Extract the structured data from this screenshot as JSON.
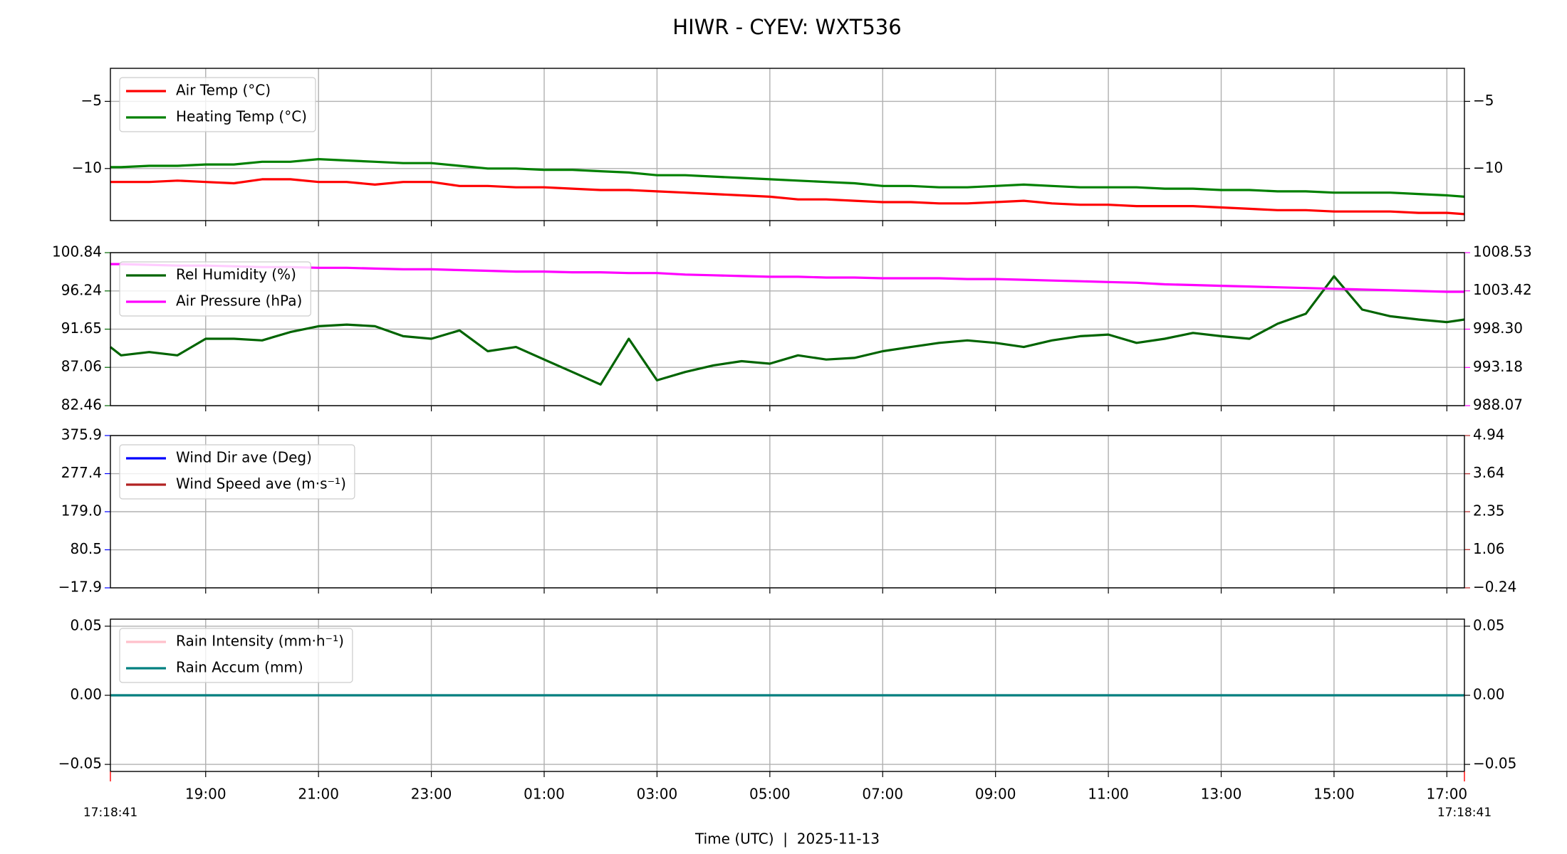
{
  "chart_data": [
    {
      "type": "line",
      "title": "HIWR - CYEV: WXT536",
      "grid": true,
      "legend": "upper left",
      "x": [
        "17:18:41",
        "17:30",
        "18:00",
        "18:30",
        "19:00",
        "19:30",
        "20:00",
        "20:30",
        "21:00",
        "21:30",
        "22:00",
        "22:30",
        "23:00",
        "23:30",
        "00:00",
        "00:30",
        "01:00",
        "01:30",
        "02:00",
        "02:30",
        "03:00",
        "03:30",
        "04:00",
        "04:30",
        "05:00",
        "05:30",
        "06:00",
        "06:30",
        "07:00",
        "07:30",
        "08:00",
        "08:30",
        "09:00",
        "09:30",
        "10:00",
        "10:30",
        "11:00",
        "11:30",
        "12:00",
        "12:30",
        "13:00",
        "13:30",
        "14:00",
        "14:30",
        "15:00",
        "15:30",
        "16:00",
        "16:30",
        "17:00",
        "17:18:41"
      ],
      "ylim": [
        -13.88,
        -2.54
      ],
      "yticks": [
        {
          "value": -10,
          "label": "−10"
        },
        {
          "value": -5,
          "label": "−5"
        }
      ],
      "y2lim": [
        -13.88,
        -2.54
      ],
      "y2ticks": [
        {
          "value": -10,
          "label": "−10"
        },
        {
          "value": -5,
          "label": "−5"
        }
      ],
      "series": [
        {
          "name": "Air Temp (°C)",
          "color": "#ff0000",
          "values": [
            -11.0,
            -11.0,
            -11.0,
            -10.9,
            -11.0,
            -11.1,
            -10.8,
            -10.8,
            -11.0,
            -11.0,
            -11.2,
            -11.0,
            -11.0,
            -11.3,
            -11.3,
            -11.4,
            -11.4,
            -11.5,
            -11.6,
            -11.6,
            -11.7,
            -11.8,
            -11.9,
            -12.0,
            -12.1,
            -12.3,
            -12.3,
            -12.4,
            -12.5,
            -12.5,
            -12.6,
            -12.6,
            -12.5,
            -12.4,
            -12.6,
            -12.7,
            -12.7,
            -12.8,
            -12.8,
            -12.8,
            -12.9,
            -13.0,
            -13.1,
            -13.1,
            -13.2,
            -13.2,
            -13.2,
            -13.3,
            -13.3,
            -13.4
          ]
        },
        {
          "name": "Heating Temp (°C)",
          "color": "#008000",
          "values": [
            -9.9,
            -9.9,
            -9.8,
            -9.8,
            -9.7,
            -9.7,
            -9.5,
            -9.5,
            -9.3,
            -9.4,
            -9.5,
            -9.6,
            -9.6,
            -9.8,
            -10.0,
            -10.0,
            -10.1,
            -10.1,
            -10.2,
            -10.3,
            -10.5,
            -10.5,
            -10.6,
            -10.7,
            -10.8,
            -10.9,
            -11.0,
            -11.1,
            -11.3,
            -11.3,
            -11.4,
            -11.4,
            -11.3,
            -11.2,
            -11.3,
            -11.4,
            -11.4,
            -11.4,
            -11.5,
            -11.5,
            -11.6,
            -11.6,
            -11.7,
            -11.7,
            -11.8,
            -11.8,
            -11.8,
            -11.9,
            -12.0,
            -12.1
          ]
        }
      ]
    },
    {
      "type": "line",
      "grid": true,
      "legend": "upper left",
      "ycolor": "#006400",
      "y2color": "#ff00ff",
      "x": [
        "17:18:41",
        "17:30",
        "18:00",
        "18:30",
        "19:00",
        "19:30",
        "20:00",
        "20:30",
        "21:00",
        "21:30",
        "22:00",
        "22:30",
        "23:00",
        "23:30",
        "00:00",
        "00:30",
        "01:00",
        "01:30",
        "02:00",
        "02:30",
        "03:00",
        "03:30",
        "04:00",
        "04:30",
        "05:00",
        "05:30",
        "06:00",
        "06:30",
        "07:00",
        "07:30",
        "08:00",
        "08:30",
        "09:00",
        "09:30",
        "10:00",
        "10:30",
        "11:00",
        "11:30",
        "12:00",
        "12:30",
        "13:00",
        "13:30",
        "14:00",
        "14:30",
        "15:00",
        "15:30",
        "16:00",
        "16:30",
        "17:00",
        "17:18:41"
      ],
      "ylim": [
        82.46,
        100.84
      ],
      "yticks": [
        82.46,
        87.06,
        91.65,
        96.24,
        100.84
      ],
      "y2lim": [
        988.07,
        1008.53
      ],
      "y2ticks": [
        988.07,
        993.18,
        {
          "value": 998.3,
          "label": "998.30"
        },
        1003.42,
        1008.53
      ],
      "series": [
        {
          "name": "Rel Humidity (%)",
          "color": "#006400",
          "values": [
            89.5,
            88.5,
            88.9,
            88.5,
            90.5,
            90.5,
            90.3,
            91.3,
            92.0,
            92.2,
            92.0,
            90.8,
            90.5,
            91.5,
            89.0,
            89.5,
            88.0,
            86.5,
            85.0,
            90.5,
            85.5,
            86.5,
            87.3,
            87.8,
            87.5,
            88.5,
            88.0,
            88.2,
            89.0,
            89.5,
            90.0,
            90.3,
            90.0,
            89.5,
            90.3,
            90.8,
            91.0,
            90.0,
            90.5,
            91.2,
            90.8,
            90.5,
            92.3,
            93.5,
            98.0,
            94.0,
            93.2,
            92.8,
            92.5,
            92.8
          ]
        },
        {
          "name": "Air Pressure (hPa)",
          "color": "#ff00ff",
          "axis": "y2",
          "values": [
            1007.0,
            1007.0,
            1006.9,
            1006.8,
            1006.8,
            1006.7,
            1006.6,
            1006.6,
            1006.5,
            1006.5,
            1006.4,
            1006.3,
            1006.3,
            1006.2,
            1006.1,
            1006.0,
            1006.0,
            1005.9,
            1005.9,
            1005.8,
            1005.8,
            1005.6,
            1005.5,
            1005.4,
            1005.3,
            1005.3,
            1005.2,
            1005.2,
            1005.1,
            1005.1,
            1005.1,
            1005.0,
            1005.0,
            1004.9,
            1004.8,
            1004.7,
            1004.6,
            1004.5,
            1004.3,
            1004.2,
            1004.1,
            1004.0,
            1003.9,
            1003.8,
            1003.7,
            1003.6,
            1003.5,
            1003.4,
            1003.3,
            1003.3
          ]
        }
      ]
    },
    {
      "type": "line",
      "grid": true,
      "legend": "upper left",
      "ycolor": "#0000ff",
      "y2color": "#b22222",
      "x": [
        "17:18:41",
        "17:30",
        "18:00",
        "18:30",
        "19:00",
        "19:30",
        "20:00",
        "20:30",
        "21:00",
        "21:30",
        "22:00",
        "22:30",
        "23:00",
        "23:30",
        "00:00",
        "00:30",
        "01:00",
        "01:30",
        "02:00",
        "02:30",
        "03:00",
        "03:30",
        "04:00",
        "04:30",
        "05:00",
        "05:30",
        "06:00",
        "06:30",
        "07:00",
        "07:30",
        "08:00",
        "08:30",
        "09:00",
        "09:30",
        "10:00",
        "10:30",
        "11:00",
        "11:30",
        "12:00",
        "12:30",
        "13:00",
        "13:30",
        "14:00",
        "14:30",
        "15:00",
        "15:30",
        "16:00",
        "16:30",
        "17:00",
        "17:18:41"
      ],
      "ylim": [
        -17.9,
        375.9
      ],
      "yticks": [
        {
          "value": -17.9,
          "label": "−17.9"
        },
        80.5,
        {
          "value": 179,
          "label": "179.0"
        },
        277.4,
        375.9
      ],
      "y2lim": [
        -0.24,
        4.94
      ],
      "y2ticks": [
        {
          "value": -0.24,
          "label": "−0.24"
        },
        1.06,
        2.35,
        3.64,
        4.94
      ],
      "series": [
        {
          "name": "Wind Dir ave (Deg)",
          "color": "#0000ff",
          "values": [
            null,
            null,
            null,
            null,
            null,
            null,
            null,
            null,
            null,
            null,
            null,
            null,
            null,
            null,
            null,
            null,
            null,
            null,
            null,
            null,
            null,
            null,
            null,
            null,
            null,
            null,
            null,
            null,
            null,
            null,
            null,
            null,
            null,
            null,
            null,
            null,
            null,
            null,
            null,
            null,
            null,
            null,
            null,
            null,
            null,
            null,
            null,
            null,
            null,
            null
          ]
        },
        {
          "name": "Wind Speed ave (m·s⁻¹)",
          "color": "#b22222",
          "axis": "y2",
          "values": [
            null,
            null,
            null,
            null,
            null,
            null,
            null,
            null,
            null,
            null,
            null,
            null,
            null,
            null,
            null,
            null,
            null,
            null,
            null,
            null,
            null,
            null,
            null,
            null,
            null,
            null,
            null,
            null,
            null,
            null,
            null,
            null,
            null,
            null,
            null,
            null,
            null,
            null,
            null,
            null,
            null,
            null,
            null,
            null,
            null,
            null,
            null,
            null,
            null,
            null
          ]
        }
      ]
    },
    {
      "type": "line",
      "grid": true,
      "legend": "upper left",
      "xlabel": "Time (UTC)  |  2025-11-13",
      "x": [
        "17:18:41",
        "17:30",
        "18:00",
        "18:30",
        "19:00",
        "19:30",
        "20:00",
        "20:30",
        "21:00",
        "21:30",
        "22:00",
        "22:30",
        "23:00",
        "23:30",
        "00:00",
        "00:30",
        "01:00",
        "01:30",
        "02:00",
        "02:30",
        "03:00",
        "03:30",
        "04:00",
        "04:30",
        "05:00",
        "05:30",
        "06:00",
        "06:30",
        "07:00",
        "07:30",
        "08:00",
        "08:30",
        "09:00",
        "09:30",
        "10:00",
        "10:30",
        "11:00",
        "11:30",
        "12:00",
        "12:30",
        "13:00",
        "13:30",
        "14:00",
        "14:30",
        "15:00",
        "15:30",
        "16:00",
        "16:30",
        "17:00",
        "17:18:41"
      ],
      "xlim": [
        "17:18:41",
        "17:18:41"
      ],
      "xticks": [
        "19:00",
        "21:00",
        "23:00",
        "01:00",
        "03:00",
        "05:00",
        "07:00",
        "09:00",
        "11:00",
        "13:00",
        "15:00",
        "17:00"
      ],
      "ylim": [
        -0.0551,
        0.0551
      ],
      "yticks": [
        {
          "value": -0.05,
          "label": "−0.05"
        },
        {
          "value": 0,
          "label": "0.00"
        },
        0.05
      ],
      "y2lim": [
        -0.0551,
        0.0551
      ],
      "y2ticks": [
        {
          "value": -0.05,
          "label": "−0.05"
        },
        {
          "value": 0,
          "label": "0.00"
        },
        0.05
      ],
      "series": [
        {
          "name": "Rain Intensity (mm·h⁻¹)",
          "color": "#ffc0cb",
          "values": [
            0,
            0,
            0,
            0,
            0,
            0,
            0,
            0,
            0,
            0,
            0,
            0,
            0,
            0,
            0,
            0,
            0,
            0,
            0,
            0,
            0,
            0,
            0,
            0,
            0,
            0,
            0,
            0,
            0,
            0,
            0,
            0,
            0,
            0,
            0,
            0,
            0,
            0,
            0,
            0,
            0,
            0,
            0,
            0,
            0,
            0,
            0,
            0,
            0,
            0
          ]
        },
        {
          "name": "Rain Accum (mm)",
          "color": "#008080",
          "values": [
            0,
            0,
            0,
            0,
            0,
            0,
            0,
            0,
            0,
            0,
            0,
            0,
            0,
            0,
            0,
            0,
            0,
            0,
            0,
            0,
            0,
            0,
            0,
            0,
            0,
            0,
            0,
            0,
            0,
            0,
            0,
            0,
            0,
            0,
            0,
            0,
            0,
            0,
            0,
            0,
            0,
            0,
            0,
            0,
            0,
            0,
            0,
            0,
            0,
            0
          ]
        }
      ]
    }
  ]
}
